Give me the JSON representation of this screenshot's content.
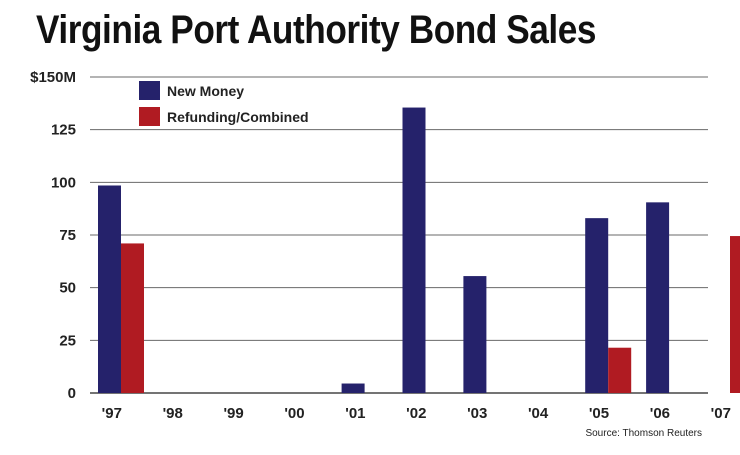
{
  "chart_data": {
    "type": "bar",
    "title": "Virginia Port Authority Bond Sales",
    "source": "Source: Thomson Reuters",
    "categories": [
      "'97",
      "'98",
      "'99",
      "'00",
      "'01",
      "'02",
      "'03",
      "'04",
      "'05",
      "'06",
      "'07"
    ],
    "series": [
      {
        "name": "New Money",
        "color": "#25226b",
        "values": [
          98.5,
          0,
          0,
          0,
          4.5,
          135.5,
          55.5,
          0,
          83,
          90.5,
          0
        ]
      },
      {
        "name": "Refunding/Combined",
        "color": "#b01b22",
        "values": [
          71,
          0,
          0,
          0,
          0,
          0,
          0,
          0,
          21.5,
          0,
          74.5
        ]
      }
    ],
    "yticks": [
      {
        "value": 0,
        "label": "0"
      },
      {
        "value": 25,
        "label": "25"
      },
      {
        "value": 50,
        "label": "50"
      },
      {
        "value": 75,
        "label": "75"
      },
      {
        "value": 100,
        "label": "100"
      },
      {
        "value": 125,
        "label": "125"
      },
      {
        "value": 150,
        "label": "$150M"
      }
    ],
    "ylim": [
      0,
      150
    ],
    "grid": true,
    "legend_position": "top-left"
  }
}
